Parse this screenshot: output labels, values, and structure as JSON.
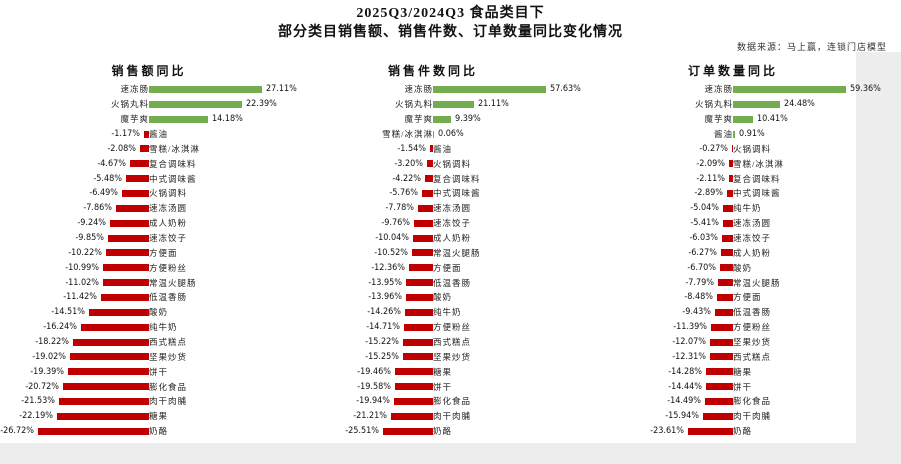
{
  "header": {
    "title_line1": "2025Q3/2024Q3 食品类目下",
    "title_line2": "部分类目销售额、销售件数、订单数量同比变化情况",
    "source_note": "数据来源：马上赢，连锁门店模型"
  },
  "colors": {
    "positive_bar": "#74ad4f",
    "negative_bar": "#c00000",
    "canvas": "#ffffff",
    "page_background": "#ededed"
  },
  "chart_data": [
    {
      "type": "bar",
      "orientation": "horizontal",
      "title": "销售额同比",
      "value_unit": "%",
      "value_labels": true,
      "axis": "hidden",
      "xlim": [
        -28,
        28
      ],
      "categories": [
        "速冻肠",
        "火锅丸料",
        "魔芋爽",
        "酱油",
        "雪糕/冰淇淋",
        "复合调味料",
        "中式调味酱",
        "火锅调料",
        "速冻汤圆",
        "成人奶粉",
        "速冻饺子",
        "方便面",
        "方便粉丝",
        "常温火腿肠",
        "低温香肠",
        "酸奶",
        "纯牛奶",
        "西式糕点",
        "坚果炒货",
        "饼干",
        "膨化食品",
        "肉干肉脯",
        "糖果",
        "奶酪"
      ],
      "values": [
        27.11,
        22.39,
        14.18,
        -1.17,
        -2.08,
        -4.67,
        -5.48,
        -6.49,
        -7.86,
        -9.24,
        -9.85,
        -10.22,
        -10.99,
        -11.02,
        -11.42,
        -14.51,
        -16.24,
        -18.22,
        -19.02,
        -19.39,
        -20.72,
        -21.53,
        -22.19,
        -26.72
      ]
    },
    {
      "type": "bar",
      "orientation": "horizontal",
      "title": "销售件数同比",
      "value_unit": "%",
      "value_labels": true,
      "axis": "hidden",
      "xlim": [
        -27,
        60
      ],
      "categories": [
        "速冻肠",
        "火锅丸料",
        "魔芋爽",
        "雪糕/冰淇淋",
        "酱油",
        "火锅调料",
        "复合调味料",
        "中式调味酱",
        "速冻汤圆",
        "速冻饺子",
        "成人奶粉",
        "常温火腿肠",
        "方便面",
        "低温香肠",
        "酸奶",
        "纯牛奶",
        "方便粉丝",
        "西式糕点",
        "坚果炒货",
        "糖果",
        "饼干",
        "膨化食品",
        "肉干肉脯",
        "奶酪"
      ],
      "values": [
        57.63,
        21.11,
        9.39,
        0.06,
        -1.54,
        -3.2,
        -4.22,
        -5.76,
        -7.78,
        -9.76,
        -10.04,
        -10.52,
        -12.36,
        -13.95,
        -13.96,
        -14.26,
        -14.71,
        -15.22,
        -15.25,
        -19.46,
        -19.58,
        -19.94,
        -21.21,
        -25.51
      ]
    },
    {
      "type": "bar",
      "orientation": "horizontal",
      "title": "订单数量同比",
      "value_unit": "%",
      "value_labels": true,
      "axis": "hidden",
      "xlim": [
        -25,
        62
      ],
      "categories": [
        "速冻肠",
        "火锅丸料",
        "魔芋爽",
        "酱油",
        "火锅调料",
        "雪糕/冰淇淋",
        "复合调味料",
        "中式调味酱",
        "纯牛奶",
        "速冻汤圆",
        "速冻饺子",
        "成人奶粉",
        "酸奶",
        "常温火腿肠",
        "方便面",
        "低温香肠",
        "方便粉丝",
        "坚果炒货",
        "西式糕点",
        "糖果",
        "饼干",
        "膨化食品",
        "肉干肉脯",
        "奶酪"
      ],
      "values": [
        59.36,
        24.48,
        10.41,
        0.91,
        -0.27,
        -2.09,
        -2.11,
        -2.89,
        -5.04,
        -5.41,
        -6.03,
        -6.27,
        -6.7,
        -7.79,
        -8.48,
        -9.43,
        -11.39,
        -12.07,
        -12.31,
        -14.28,
        -14.44,
        -14.49,
        -15.94,
        -23.61
      ]
    }
  ]
}
